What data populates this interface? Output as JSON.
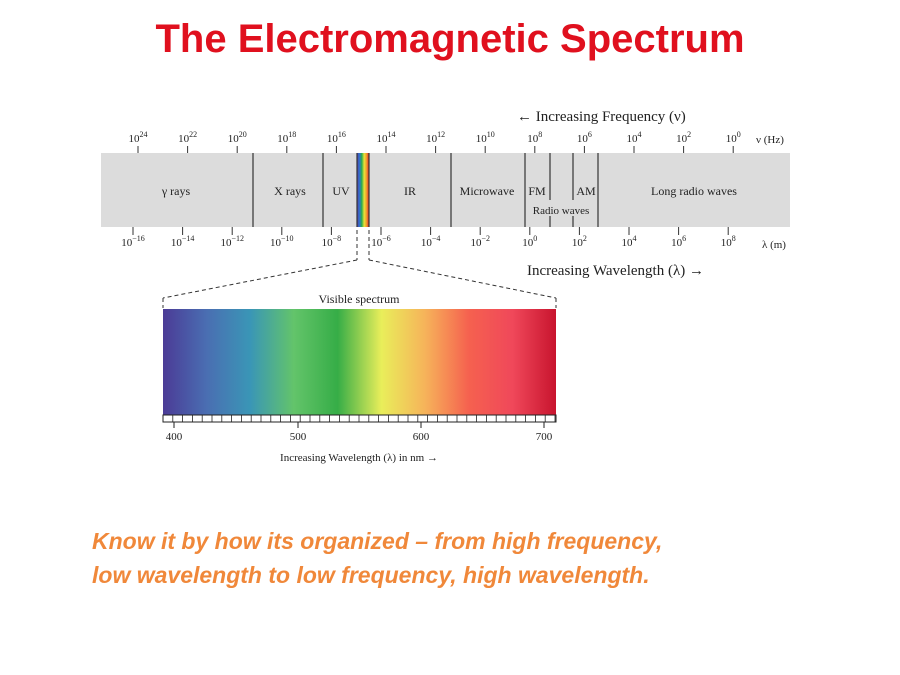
{
  "title": "The Electromagnetic Spectrum",
  "frequency_axis": {
    "label": "← Increasing Frequency (ν)",
    "unit": "ν (Hz)",
    "ticks": [
      {
        "base": "10",
        "exp": "24"
      },
      {
        "base": "10",
        "exp": "22"
      },
      {
        "base": "10",
        "exp": "20"
      },
      {
        "base": "10",
        "exp": "18"
      },
      {
        "base": "10",
        "exp": "16"
      },
      {
        "base": "10",
        "exp": "14"
      },
      {
        "base": "10",
        "exp": "12"
      },
      {
        "base": "10",
        "exp": "10"
      },
      {
        "base": "10",
        "exp": "8"
      },
      {
        "base": "10",
        "exp": "6"
      },
      {
        "base": "10",
        "exp": "4"
      },
      {
        "base": "10",
        "exp": "2"
      },
      {
        "base": "10",
        "exp": "0"
      }
    ]
  },
  "wavelength_axis": {
    "label": "Increasing Wavelength (λ) →",
    "unit": "λ (m)",
    "ticks": [
      {
        "base": "10",
        "exp": "−16"
      },
      {
        "base": "10",
        "exp": "−14"
      },
      {
        "base": "10",
        "exp": "−12"
      },
      {
        "base": "10",
        "exp": "−10"
      },
      {
        "base": "10",
        "exp": "−8"
      },
      {
        "base": "10",
        "exp": "−6"
      },
      {
        "base": "10",
        "exp": "−4"
      },
      {
        "base": "10",
        "exp": "−2"
      },
      {
        "base": "10",
        "exp": "0"
      },
      {
        "base": "10",
        "exp": "2"
      },
      {
        "base": "10",
        "exp": "4"
      },
      {
        "base": "10",
        "exp": "6"
      },
      {
        "base": "10",
        "exp": "8"
      }
    ]
  },
  "regions": [
    {
      "name": "gamma",
      "label": "γ rays"
    },
    {
      "name": "xray",
      "label": "X rays"
    },
    {
      "name": "uv",
      "label": "UV"
    },
    {
      "name": "ir",
      "label": "IR"
    },
    {
      "name": "microwave",
      "label": "Microwave"
    },
    {
      "name": "fm",
      "label": "FM"
    },
    {
      "name": "am",
      "label": "AM"
    },
    {
      "name": "radio",
      "label": "Radio waves"
    },
    {
      "name": "long-radio",
      "label": "Long radio waves"
    }
  ],
  "visible": {
    "title": "Visible spectrum",
    "ticks": [
      "400",
      "500",
      "600",
      "700"
    ],
    "axis_label": "Increasing Wavelength (λ) in nm →",
    "colors": [
      "#4b3b96",
      "#4a6eb2",
      "#3a96b6",
      "#63c46a",
      "#36ad47",
      "#e9ee5a",
      "#f6b35a",
      "#f5614f",
      "#f0485a",
      "#c8142e"
    ]
  },
  "caption": {
    "line1": "Know it by how its organized – from high frequency,",
    "line2": "low wavelength to low frequency, high wavelength."
  }
}
